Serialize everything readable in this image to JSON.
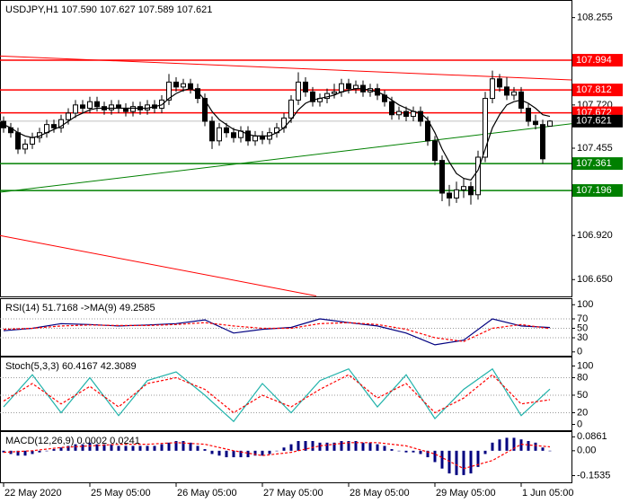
{
  "chart_data": [
    {
      "type": "candlestick",
      "title": "USDJPY,H1  107.590 107.627 107.589 107.621",
      "open": [
        107.62,
        107.58,
        107.55,
        107.45,
        107.48,
        107.52,
        107.55,
        107.6,
        107.58,
        107.63,
        107.67,
        107.72,
        107.7,
        107.74,
        107.71,
        107.69,
        107.72,
        107.7,
        107.68,
        107.71,
        107.69,
        107.72,
        107.7,
        107.75,
        107.86,
        107.83,
        107.85,
        107.82,
        107.76,
        107.62,
        107.5,
        107.58,
        107.55,
        107.52,
        107.56,
        107.5,
        107.53,
        107.51,
        107.55,
        107.58,
        107.64,
        107.75,
        107.86,
        107.8,
        107.74,
        107.76,
        107.79,
        107.8,
        107.85,
        107.82,
        107.84,
        107.8,
        107.82,
        107.78,
        107.74,
        107.66,
        107.68,
        107.65,
        107.68,
        107.62,
        107.5,
        107.38,
        107.18,
        107.15,
        107.2,
        107.22,
        107.17,
        107.4,
        107.76,
        107.88,
        107.83,
        107.78,
        107.8,
        107.7,
        107.62,
        107.6,
        107.59
      ],
      "high": [
        107.65,
        107.61,
        107.58,
        107.51,
        107.55,
        107.58,
        107.63,
        107.63,
        107.66,
        107.7,
        107.75,
        107.75,
        107.77,
        107.77,
        107.74,
        107.75,
        107.75,
        107.73,
        107.74,
        107.74,
        107.75,
        107.75,
        107.78,
        107.91,
        107.89,
        107.88,
        107.88,
        107.85,
        107.79,
        107.65,
        107.61,
        107.61,
        107.58,
        107.59,
        107.59,
        107.56,
        107.56,
        107.58,
        107.61,
        107.67,
        107.78,
        107.92,
        107.89,
        107.83,
        107.79,
        107.82,
        107.85,
        107.88,
        107.88,
        107.87,
        107.87,
        107.85,
        107.85,
        107.81,
        107.77,
        107.71,
        107.71,
        107.71,
        107.71,
        107.65,
        107.53,
        107.41,
        107.23,
        107.25,
        107.27,
        107.25,
        107.44,
        107.8,
        107.93,
        107.91,
        107.89,
        107.83,
        107.83,
        107.73,
        107.66,
        107.63,
        107.627
      ],
      "low": [
        107.55,
        107.52,
        107.42,
        107.42,
        107.45,
        107.49,
        107.52,
        107.55,
        107.55,
        107.6,
        107.64,
        107.67,
        107.67,
        107.68,
        107.66,
        107.66,
        107.67,
        107.65,
        107.65,
        107.66,
        107.66,
        107.67,
        107.67,
        107.72,
        107.8,
        107.8,
        107.79,
        107.73,
        107.59,
        107.45,
        107.47,
        107.52,
        107.49,
        107.49,
        107.47,
        107.47,
        107.48,
        107.48,
        107.52,
        107.55,
        107.61,
        107.72,
        107.77,
        107.71,
        107.71,
        107.73,
        107.76,
        107.77,
        107.79,
        107.79,
        107.77,
        107.77,
        107.75,
        107.71,
        107.63,
        107.63,
        107.62,
        107.62,
        107.59,
        107.47,
        107.35,
        107.13,
        107.1,
        107.12,
        107.15,
        107.11,
        107.14,
        107.37,
        107.73,
        107.8,
        107.75,
        107.75,
        107.67,
        107.59,
        107.57,
        107.36,
        107.589
      ],
      "close": [
        107.58,
        107.55,
        107.45,
        107.48,
        107.52,
        107.55,
        107.6,
        107.58,
        107.63,
        107.67,
        107.72,
        107.7,
        107.74,
        107.71,
        107.69,
        107.72,
        107.7,
        107.68,
        107.71,
        107.69,
        107.72,
        107.7,
        107.75,
        107.86,
        107.83,
        107.85,
        107.82,
        107.76,
        107.62,
        107.5,
        107.58,
        107.55,
        107.52,
        107.56,
        107.5,
        107.53,
        107.51,
        107.55,
        107.58,
        107.64,
        107.75,
        107.86,
        107.8,
        107.74,
        107.76,
        107.79,
        107.8,
        107.85,
        107.82,
        107.84,
        107.8,
        107.82,
        107.78,
        107.74,
        107.66,
        107.68,
        107.65,
        107.68,
        107.62,
        107.5,
        107.38,
        107.18,
        107.15,
        107.2,
        107.22,
        107.17,
        107.4,
        107.76,
        107.88,
        107.83,
        107.78,
        107.8,
        107.7,
        107.62,
        107.6,
        107.39,
        107.621
      ],
      "ma": {
        "color": "#000000",
        "values": [
          107.6,
          107.58,
          107.55,
          107.53,
          107.52,
          107.53,
          107.55,
          107.57,
          107.59,
          107.62,
          107.65,
          107.67,
          107.69,
          107.7,
          107.7,
          107.7,
          107.7,
          107.7,
          107.7,
          107.7,
          107.7,
          107.71,
          107.72,
          107.76,
          107.79,
          107.81,
          107.82,
          107.8,
          107.75,
          107.68,
          107.63,
          107.6,
          107.57,
          107.56,
          107.54,
          107.53,
          107.53,
          107.53,
          107.55,
          107.58,
          107.63,
          107.69,
          107.73,
          107.75,
          107.76,
          107.77,
          107.78,
          107.8,
          107.81,
          107.82,
          107.82,
          107.81,
          107.8,
          107.78,
          107.75,
          107.72,
          107.7,
          107.68,
          107.67,
          107.63,
          107.55,
          107.45,
          107.37,
          107.3,
          107.27,
          107.26,
          107.32,
          107.45,
          107.58,
          107.66,
          107.72,
          107.74,
          107.75,
          107.73,
          107.7,
          107.66,
          107.65
        ]
      },
      "xlim": [
        -0.5,
        79
      ],
      "xticks": [
        {
          "value": 0,
          "label": "22 May 2020"
        },
        {
          "value": 12,
          "label": "25 May 05:00"
        },
        {
          "value": 24,
          "label": "26 May 05:00"
        },
        {
          "value": 36,
          "label": "27 May 05:00"
        },
        {
          "value": 48,
          "label": "28 May 05:00"
        },
        {
          "value": 60,
          "label": "29 May 05:00"
        },
        {
          "value": 72,
          "label": "1 Jun 05:00"
        }
      ],
      "ylim": [
        106.547,
        108.352
      ],
      "yticks": [
        108.255,
        {
          "value": 107.72,
          "label": "107.720"
        },
        107.455,
        {
          "value": 106.92,
          "label": "106.920"
        },
        {
          "value": 106.65,
          "label": "106.650"
        }
      ],
      "levels": [
        {
          "value": 107.994,
          "color": "#ff0000"
        },
        {
          "value": 107.812,
          "color": "#ff0000"
        },
        {
          "value": 107.672,
          "color": "#ff0000"
        },
        {
          "value": 107.361,
          "color": "#008000"
        },
        {
          "value": 107.196,
          "color": "#008000"
        }
      ],
      "current": {
        "value": 107.621,
        "color": "#000000"
      },
      "trendlines": [
        {
          "color": "#ff0000",
          "x": [
            -0.5,
            79
          ],
          "values": [
            108.02,
            107.873
          ]
        },
        {
          "color": "#008000",
          "x": [
            -0.5,
            79
          ],
          "values": [
            107.185,
            107.605
          ]
        },
        {
          "color": "#ff0000",
          "x": [
            -0.5,
            43.5
          ],
          "values": [
            106.92,
            106.55
          ]
        }
      ]
    },
    {
      "type": "line",
      "title": "RSI(14) 51.7168 ->MA(9) 49.2585",
      "grid": true,
      "x": [
        0,
        4,
        8,
        12,
        16,
        20,
        24,
        28,
        32,
        36,
        40,
        44,
        48,
        52,
        56,
        60,
        64,
        68,
        72,
        76
      ],
      "series": [
        {
          "color": "#000080",
          "dash": false,
          "values": [
            45,
            50,
            60,
            58,
            55,
            57,
            60,
            68,
            40,
            48,
            52,
            70,
            62,
            55,
            40,
            15,
            25,
            70,
            55,
            51.7168
          ]
        },
        {
          "color": "#ff0000",
          "dash": true,
          "values": [
            48,
            50,
            55,
            57,
            56,
            56,
            58,
            62,
            55,
            50,
            50,
            60,
            62,
            58,
            48,
            30,
            22,
            50,
            58,
            49.2585
          ]
        }
      ],
      "ylim": [
        -8,
        110
      ],
      "yticks": [
        100,
        70,
        50,
        30,
        0
      ]
    },
    {
      "type": "line",
      "title": "Stoch(5,3,3) 60.4167 42.3089",
      "grid": true,
      "x": [
        0,
        4,
        8,
        12,
        16,
        20,
        24,
        28,
        32,
        36,
        40,
        44,
        48,
        52,
        56,
        60,
        64,
        68,
        72,
        76
      ],
      "series": [
        {
          "color": "#20b2aa",
          "dash": false,
          "values": [
            30,
            85,
            20,
            80,
            15,
            75,
            90,
            50,
            5,
            70,
            20,
            75,
            95,
            30,
            85,
            10,
            60,
            95,
            15,
            60.4167
          ]
        },
        {
          "color": "#ff0000",
          "dash": true,
          "values": [
            40,
            70,
            35,
            65,
            30,
            70,
            80,
            60,
            20,
            50,
            30,
            60,
            85,
            45,
            70,
            20,
            45,
            85,
            35,
            42.3089
          ]
        }
      ],
      "ylim": [
        -10,
        113
      ],
      "yticks": [
        100,
        80,
        50,
        20,
        0
      ]
    },
    {
      "type": "bar",
      "title": "MACD(12,26,9) 0.0002 0.0241",
      "grid": false,
      "hist": {
        "color": "#000080",
        "values": [
          -0.01,
          -0.02,
          -0.03,
          -0.03,
          -0.02,
          -0.01,
          0.0,
          0.01,
          0.02,
          0.03,
          0.04,
          0.04,
          0.05,
          0.04,
          0.04,
          0.04,
          0.03,
          0.03,
          0.03,
          0.03,
          0.03,
          0.03,
          0.04,
          0.05,
          0.06,
          0.06,
          0.05,
          0.03,
          0.01,
          -0.02,
          -0.03,
          -0.04,
          -0.04,
          -0.04,
          -0.04,
          -0.03,
          -0.03,
          -0.02,
          0.0,
          0.02,
          0.04,
          0.06,
          0.06,
          0.06,
          0.05,
          0.05,
          0.05,
          0.06,
          0.06,
          0.06,
          0.05,
          0.05,
          0.04,
          0.03,
          0.01,
          0.0,
          -0.01,
          -0.01,
          -0.02,
          -0.04,
          -0.07,
          -0.11,
          -0.14,
          -0.15,
          -0.15,
          -0.14,
          -0.1,
          -0.02,
          0.05,
          0.07,
          0.08,
          0.08,
          0.07,
          0.06,
          0.05,
          0.02,
          0.0002
        ]
      },
      "x": [
        0,
        4,
        8,
        12,
        16,
        20,
        24,
        28,
        32,
        36,
        40,
        44,
        48,
        52,
        56,
        60,
        64,
        68,
        72,
        76
      ],
      "series": [
        {
          "color": "#ff0000",
          "dash": true,
          "values": [
            -0.01,
            0.0,
            0.02,
            0.03,
            0.04,
            0.04,
            0.05,
            0.04,
            0.0,
            -0.03,
            -0.01,
            0.03,
            0.05,
            0.05,
            0.03,
            -0.02,
            -0.11,
            -0.06,
            0.04,
            0.0241
          ]
        }
      ],
      "ylim": [
        -0.195,
        0.11
      ],
      "yticks": [
        0.0861,
        {
          "value": 0,
          "label": "0.00"
        },
        -0.1535
      ]
    }
  ]
}
